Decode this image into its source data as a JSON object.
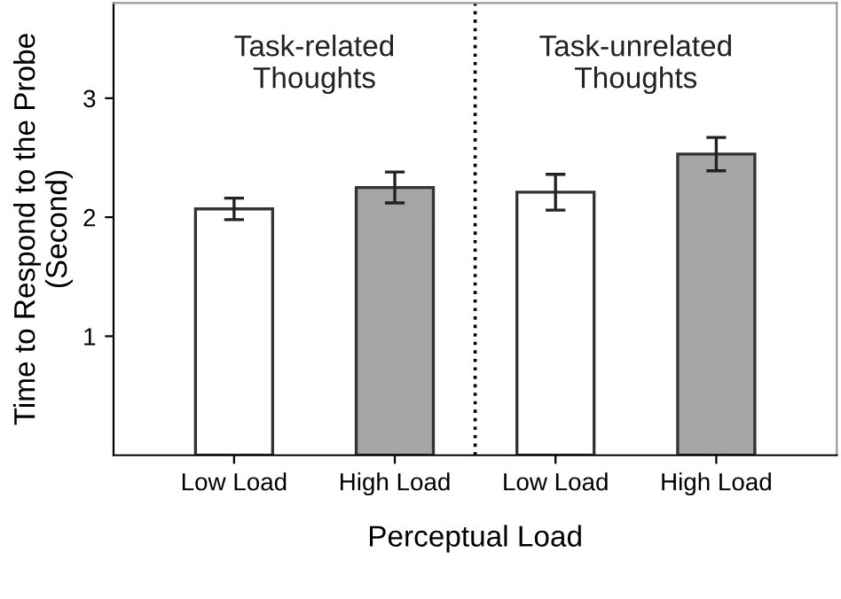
{
  "chart_data": {
    "type": "bar",
    "xlabel": "Perceptual Load",
    "ylabel": "Time to Respond to the Probe\n(Second)",
    "categories": [
      "Low Load",
      "High Load",
      "Low Load",
      "High Load"
    ],
    "values": [
      2.07,
      2.25,
      2.21,
      2.53
    ],
    "errors": [
      0.09,
      0.13,
      0.15,
      0.14
    ],
    "colors": [
      "#ffffff",
      "#a6a6a6",
      "#ffffff",
      "#a6a6a6"
    ],
    "ylim": [
      0,
      3.8
    ],
    "yticks": [
      1,
      2,
      3
    ],
    "annotations": [
      "Task-related\nThoughts",
      "Task-unrelated\nThoughts"
    ],
    "grid": false,
    "legend": false
  }
}
